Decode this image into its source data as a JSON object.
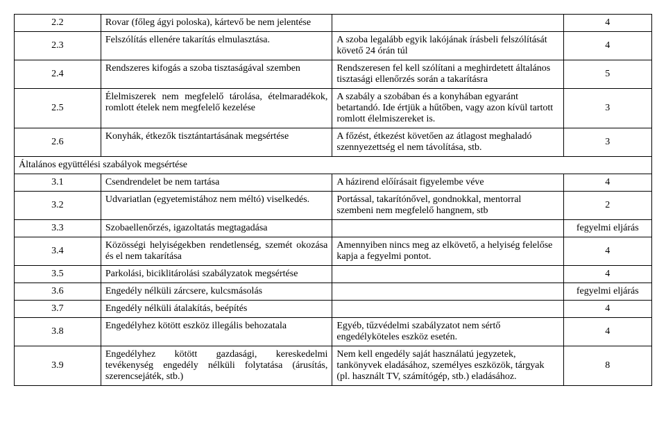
{
  "rows": [
    {
      "num": "2.2",
      "desc": "Rovar (főleg ágyi poloska), kártevő be nem jelentése",
      "note": "",
      "pt": "4"
    },
    {
      "num": "2.3",
      "desc": "Felszólítás ellenére takarítás elmulasztása.",
      "note": "A szoba legalább egyik lakójának írásbeli felszólítását követő 24 órán túl",
      "pt": "4"
    },
    {
      "num": "2.4",
      "desc": "Rendszeres kifogás a szoba tisztaságával szemben",
      "note": "Rendszeresen fel kell szólítani a meghirdetett általános tisztasági ellenőrzés során a takarításra",
      "pt": "5"
    },
    {
      "num": "2.5",
      "desc": "Élelmiszerek nem megfelelő tárolása, ételmaradékok, romlott ételek nem megfelelő kezelése",
      "note": "A szabály a szobában és a konyhában egyaránt betartandó. Ide értjük a hűtőben, vagy azon kívül tartott romlott élelmiszereket is.",
      "pt": "3"
    },
    {
      "num": "2.6",
      "desc": "Konyhák, étkezők tisztántartásának megsértése",
      "note": "A főzést, étkezést követően az átlagost meghaladó szennyezettség el nem távolítása, stb.",
      "pt": "3"
    },
    {
      "section": "Általános együttélési szabályok megsértése"
    },
    {
      "num": "3.1",
      "desc": "Csendrendelet be nem tartása",
      "note": "A házirend előírásait figyelembe véve",
      "pt": "4"
    },
    {
      "num": "3.2",
      "desc": "Udvariatlan (egyetemistához nem méltó) viselkedés.",
      "note": "Portással, takarítónővel, gondnokkal, mentorral szembeni nem megfelelő hangnem, stb",
      "pt": "2"
    },
    {
      "num": "3.3",
      "desc": "Szobaellenőrzés, igazoltatás megtagadása",
      "note": "",
      "pt": "fegyelmi eljárás"
    },
    {
      "num": "3.4",
      "desc": "Közösségi helyiségekben rendetlenség, szemét okozása és el nem takarítása",
      "note": "Amennyiben nincs meg az elkövető, a helyiség felelőse kapja a fegyelmi pontot.",
      "pt": "4"
    },
    {
      "num": "3.5",
      "desc": "Parkolási, biciklitárolási szabályzatok megsértése",
      "note": "",
      "pt": "4"
    },
    {
      "num": "3.6",
      "desc": "Engedély nélküli zárcsere, kulcsmásolás",
      "note": "",
      "pt": "fegyelmi eljárás"
    },
    {
      "num": "3.7",
      "desc": "Engedély nélküli átalakítás, beépítés",
      "note": "",
      "pt": "4"
    },
    {
      "num": "3.8",
      "desc": "Engedélyhez kötött eszköz illegális behozatala",
      "note": "Egyéb, tűzvédelmi szabályzatot nem sértő engedélyköteles eszköz esetén.",
      "pt": "4"
    },
    {
      "num": "3.9",
      "desc": "Engedélyhez kötött gazdasági, kereskedelmi tevékenység engedély nélküli folytatása (árusítás, szerencsejáték, stb.)",
      "note": "Nem kell engedély saját használatú jegyzetek, tankönyvek eladásához, személyes eszközök, tárgyak (pl. használt TV, számítógép, stb.) eladásához.",
      "pt": "8"
    }
  ]
}
